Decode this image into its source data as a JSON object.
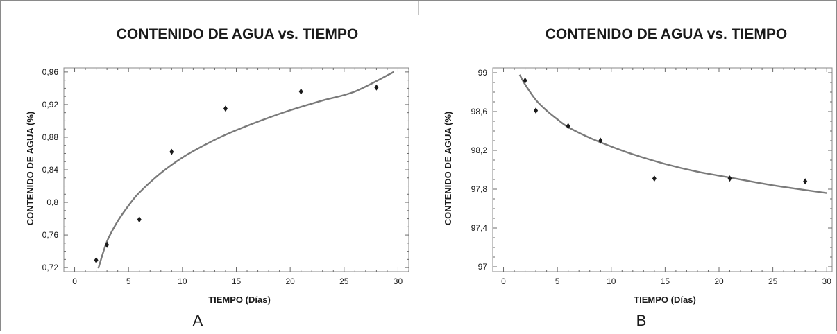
{
  "chart_data": [
    {
      "type": "scatter",
      "panel": "A",
      "title": "CONTENIDO DE AGUA vs. TIEMPO",
      "xlabel": "TIEMPO (Días)",
      "ylabel": "CONTENIDO DE AGUA (%)",
      "xlim": [
        -1,
        31
      ],
      "ylim": [
        0.715,
        0.965
      ],
      "xticks": [
        0,
        5,
        10,
        15,
        20,
        25,
        30
      ],
      "xtick_labels": [
        "0",
        "5",
        "10",
        "15",
        "20",
        "25",
        "30"
      ],
      "yticks": [
        0.72,
        0.76,
        0.8,
        0.84,
        0.88,
        0.92,
        0.96
      ],
      "ytick_labels": [
        "0,72",
        "0,76",
        "0,8",
        "0,84",
        "0,88",
        "0,92",
        "0,96"
      ],
      "grid": false,
      "series": [
        {
          "kind": "points",
          "x": [
            2,
            3,
            6,
            9,
            14,
            21,
            28
          ],
          "y": [
            0.729,
            0.748,
            0.779,
            0.862,
            0.915,
            0.936,
            0.941
          ]
        },
        {
          "kind": "fitted-curve",
          "x": [
            2.2,
            3,
            4,
            5,
            6,
            8,
            10,
            12,
            14,
            17,
            20,
            23,
            26,
            29.6
          ],
          "y": [
            0.719,
            0.752,
            0.777,
            0.796,
            0.812,
            0.836,
            0.855,
            0.87,
            0.883,
            0.899,
            0.913,
            0.925,
            0.936,
            0.96
          ]
        }
      ]
    },
    {
      "type": "scatter",
      "panel": "B",
      "title": "CONTENIDO DE AGUA vs. TIEMPO",
      "xlabel": "TIEMPO (Días)",
      "ylabel": "CONTENIDO DE AGUA (%)",
      "xlim": [
        -1,
        30.5
      ],
      "ylim": [
        96.95,
        99.05
      ],
      "xticks": [
        0,
        5,
        10,
        15,
        20,
        25,
        30
      ],
      "xtick_labels": [
        "0",
        "5",
        "10",
        "15",
        "20",
        "25",
        "30"
      ],
      "yticks": [
        97,
        97.4,
        97.8,
        98.2,
        98.6,
        99
      ],
      "ytick_labels": [
        "97",
        "97,4",
        "97,8",
        "98,2",
        "98,6",
        "99"
      ],
      "grid": false,
      "series": [
        {
          "kind": "points",
          "x": [
            2,
            3,
            6,
            9,
            14,
            21,
            28
          ],
          "y": [
            98.92,
            98.61,
            98.45,
            98.3,
            97.91,
            97.91,
            97.88
          ]
        },
        {
          "kind": "fitted-curve",
          "x": [
            1.5,
            2,
            3,
            4,
            5,
            6,
            8,
            10,
            12,
            15,
            18,
            21,
            25,
            30
          ],
          "y": [
            98.98,
            98.88,
            98.72,
            98.61,
            98.52,
            98.44,
            98.33,
            98.24,
            98.16,
            98.06,
            97.98,
            97.92,
            97.84,
            97.76
          ]
        }
      ]
    }
  ],
  "panel_letters": [
    "A",
    "B"
  ]
}
